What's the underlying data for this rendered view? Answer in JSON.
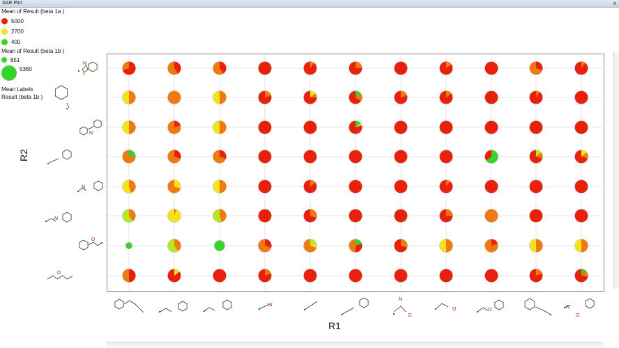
{
  "window": {
    "title": "SAR Plot",
    "close_glyph": "x"
  },
  "legend": {
    "color_header": "Mean of Result (beta 1a )",
    "color_items": [
      {
        "label": "5000",
        "color": "#e8200c"
      },
      {
        "label": "2700",
        "color": "#f4e41c"
      },
      {
        "label": "400",
        "color": "#38d22c"
      }
    ],
    "size_header": "Mean of Result (beta 1b )",
    "size_items": [
      {
        "label": "851"
      },
      {
        "label": "5360"
      }
    ],
    "labels_header": "Mean Labels",
    "labels_sub": "Result (beta 1b )"
  },
  "chart_data": {
    "type": "scatter",
    "xlabel": "R1",
    "ylabel": "R2",
    "colors": {
      "red": "#e8200c",
      "orange": "#f07a10",
      "yellow": "#f4e41c",
      "green": "#38d22c",
      "lime": "#b6e81e"
    },
    "columns": [
      "acryloyl-phenyl",
      "imine-phenyl",
      "phenyl-imine",
      "bromo",
      "methyl",
      "phenylethynyl-methyl",
      "acetamide",
      "ethoxy",
      "phenoxymethyl",
      "benzyl",
      "benzamide"
    ],
    "rows": [
      "benzothiazole",
      "phenyl",
      "diphenylamine",
      "phenylethynyl",
      "azobenzene",
      "imine",
      "chalcone",
      "acrylate-ester"
    ],
    "pies": [
      [
        [
          "orange",
          [
            "red",
            0.7
          ]
        ],
        [
          "orange",
          [
            "red",
            0.4
          ]
        ],
        [
          "orange",
          [
            "red",
            0.4
          ]
        ],
        [
          "red"
        ],
        [
          "red",
          [
            "orange",
            0.1
          ]
        ],
        [
          "red",
          [
            "orange",
            0.25
          ]
        ],
        [
          "red"
        ],
        [
          "red",
          [
            "orange",
            0.15
          ]
        ],
        [
          "red"
        ],
        [
          "orange",
          [
            "red",
            0.3
          ]
        ],
        [
          "red",
          [
            "orange",
            0.1
          ]
        ]
      ],
      [
        [
          "yellow",
          [
            "orange",
            0.5
          ]
        ],
        [
          "orange"
        ],
        [
          "yellow",
          [
            "orange",
            0.5
          ]
        ],
        [
          "red",
          [
            "orange",
            0.2
          ]
        ],
        [
          "red",
          [
            "yellow",
            0.15
          ],
          [
            "orange",
            0.1
          ]
        ],
        [
          "red",
          [
            "green",
            0.15
          ],
          [
            "orange",
            0.2
          ]
        ],
        [
          "red",
          [
            "orange",
            0.2
          ]
        ],
        [
          "red",
          [
            "orange",
            0.15
          ]
        ],
        [
          "red"
        ],
        [
          "red",
          [
            "orange",
            0.1
          ]
        ],
        [
          "red"
        ]
      ],
      [
        [
          "yellow",
          [
            "orange",
            0.5
          ]
        ],
        [
          "orange",
          [
            "red",
            0.2
          ]
        ],
        [
          "yellow",
          [
            "orange",
            0.5
          ]
        ],
        [
          "red"
        ],
        [
          "red"
        ],
        [
          "red",
          [
            "green",
            0.15
          ],
          [
            "yellow",
            0.05
          ]
        ],
        [
          "red"
        ],
        [
          "red"
        ],
        [
          "red"
        ],
        [
          "red"
        ],
        [
          "red"
        ]
      ],
      [
        [
          "orange",
          [
            "green",
            0.25
          ]
        ],
        [
          "orange",
          [
            "red",
            0.3
          ]
        ],
        [
          "orange",
          [
            "red",
            0.3
          ]
        ],
        [
          "red"
        ],
        [
          "red"
        ],
        [
          "red"
        ],
        [
          "red"
        ],
        [
          "red"
        ],
        [
          "red",
          [
            "green",
            0.65
          ]
        ],
        [
          "red",
          [
            "lime",
            0.15
          ],
          [
            "orange",
            0.15
          ]
        ],
        [
          "red",
          [
            "yellow",
            0.15
          ],
          [
            "orange",
            0.15
          ]
        ]
      ],
      [
        [
          "yellow",
          [
            "orange",
            0.45
          ]
        ],
        [
          "orange",
          [
            "yellow",
            0.3
          ]
        ],
        [
          "yellow",
          [
            "orange",
            0.5
          ]
        ],
        [
          "red"
        ],
        [
          "red",
          [
            "orange",
            0.15
          ]
        ],
        [
          "red"
        ],
        [
          "red"
        ],
        [
          "red",
          [
            "orange",
            0.1
          ]
        ],
        [
          "red"
        ],
        [
          "red"
        ],
        [
          "red"
        ]
      ],
      [
        [
          "lime",
          [
            "orange",
            0.4
          ]
        ],
        [
          "yellow",
          [
            "orange",
            0.05
          ]
        ],
        [
          "lime",
          [
            "orange",
            0.45
          ]
        ],
        [
          "red"
        ],
        [
          "red",
          [
            "orange",
            0.3
          ]
        ],
        [
          "red"
        ],
        [
          "red"
        ],
        [
          "red",
          [
            "orange",
            0.25
          ]
        ],
        [
          "orange"
        ],
        [
          "red"
        ],
        [
          "red"
        ]
      ],
      [
        [
          "green"
        ],
        [
          "lime",
          [
            "orange",
            0.4
          ]
        ],
        [
          "green"
        ],
        [
          "orange",
          [
            "red",
            0.3
          ]
        ],
        [
          "orange",
          [
            "lime",
            0.2
          ],
          [
            "yellow",
            0.1
          ]
        ],
        [
          "orange",
          [
            "green",
            0.2
          ],
          [
            "red",
            0.3
          ]
        ],
        [
          "red",
          [
            "orange",
            0.3
          ]
        ],
        [
          "yellow",
          [
            "orange",
            0.5
          ]
        ],
        [
          "orange",
          [
            "red",
            0.2
          ]
        ],
        [
          "yellow",
          [
            "orange",
            0.5
          ]
        ],
        [
          "yellow",
          [
            "orange",
            0.5
          ]
        ]
      ],
      [
        [
          "orange",
          [
            "red",
            0.5
          ]
        ],
        [
          "red",
          [
            "yellow",
            0.15
          ]
        ],
        [
          "red"
        ],
        [
          "red",
          [
            "orange",
            0.2
          ]
        ],
        [
          "red"
        ],
        [
          "red"
        ],
        [
          "red"
        ],
        [
          "red"
        ],
        [
          "red"
        ],
        [
          "red",
          [
            "orange",
            0.2
          ]
        ],
        [
          "red",
          [
            "green",
            0.12
          ],
          [
            "orange",
            0.15
          ]
        ]
      ]
    ],
    "sizes": [
      [
        1,
        1,
        1,
        1,
        1,
        1,
        1,
        1,
        1,
        1,
        1
      ],
      [
        1,
        1,
        1,
        1,
        1,
        1,
        1,
        1,
        1,
        1,
        1
      ],
      [
        1,
        1,
        1,
        1,
        1,
        1,
        1,
        1,
        1,
        1,
        1
      ],
      [
        1,
        1,
        1,
        1,
        1,
        1,
        1,
        1,
        1,
        1,
        1
      ],
      [
        1,
        1,
        1,
        1,
        1,
        1,
        1,
        1,
        1,
        1,
        1
      ],
      [
        1,
        1,
        1,
        1,
        1,
        1,
        1,
        1,
        1,
        1,
        1
      ],
      [
        0.5,
        1,
        0.8,
        1,
        1,
        1,
        1,
        1,
        1,
        1,
        1
      ],
      [
        1,
        1,
        1,
        1,
        1,
        1,
        1,
        1,
        1,
        1,
        1
      ]
    ],
    "column_structures": [
      {
        "atoms": []
      },
      {
        "atoms": []
      },
      {
        "atoms": []
      },
      {
        "atoms": [
          "Br"
        ]
      },
      {
        "atoms": []
      },
      {
        "atoms": []
      },
      {
        "atoms": [
          "N",
          "O"
        ]
      },
      {
        "atoms": [
          "O"
        ]
      },
      {
        "atoms": [
          "O"
        ]
      },
      {
        "atoms": []
      },
      {
        "atoms": [
          "N",
          "O"
        ]
      }
    ],
    "row_structures": [
      {
        "atoms": [
          "N",
          "S"
        ]
      },
      {
        "atoms": []
      },
      {
        "atoms": [
          "N"
        ]
      },
      {
        "atoms": []
      },
      {
        "atoms": [
          "N",
          "N"
        ]
      },
      {
        "atoms": [
          "N"
        ]
      },
      {
        "atoms": [
          "O"
        ]
      },
      {
        "atoms": [
          "O",
          "O"
        ]
      }
    ]
  }
}
